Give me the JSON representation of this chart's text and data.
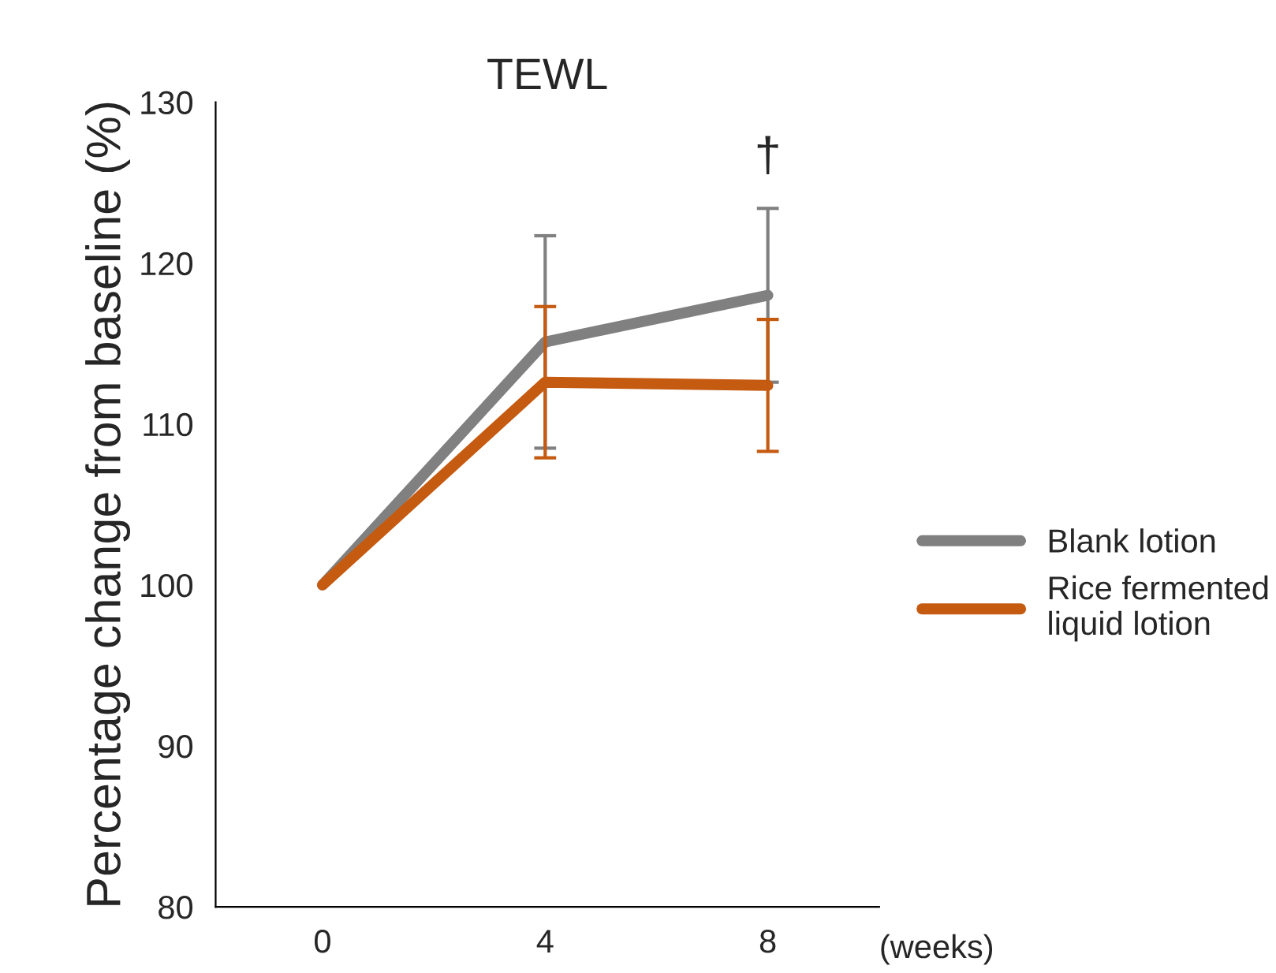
{
  "chart_data": {
    "type": "line",
    "title": "TEWL",
    "ylabel": "Percentage change from baseline (%)",
    "categories": [
      "0",
      "4",
      "8"
    ],
    "series": [
      {
        "name": "Blank lotion",
        "color": "#808080",
        "values": [
          100,
          115.1,
          118.0
        ],
        "errors": [
          null,
          6.6,
          5.4
        ]
      },
      {
        "name": "Rice fermented\nliquid lotion",
        "color": "#c55a11",
        "values": [
          100,
          112.6,
          112.4
        ],
        "errors": [
          null,
          4.7,
          4.1
        ]
      }
    ],
    "ylim": [
      80,
      130
    ],
    "yticks": [
      80,
      90,
      100,
      110,
      120,
      130
    ],
    "grid": false,
    "legend": "right",
    "marker": "none",
    "line_style": "solid",
    "annotations": [
      "†",
      "(weeks)"
    ]
  }
}
